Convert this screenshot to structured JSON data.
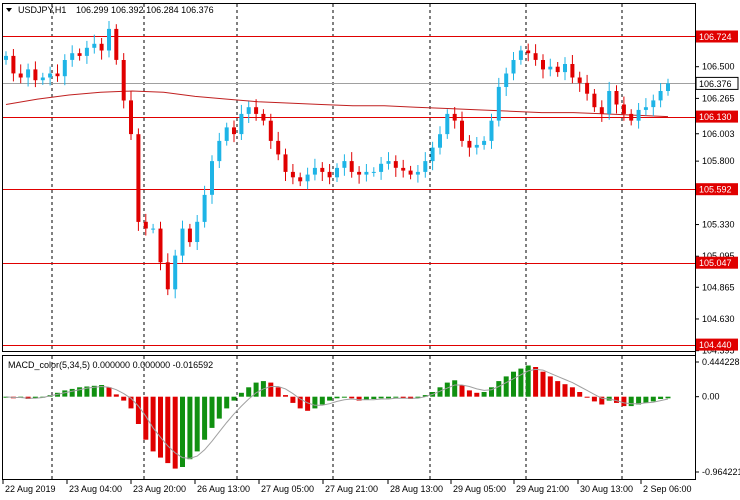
{
  "chart_data": {
    "type": "candlestick",
    "title": "USDJPY,H1",
    "ohlc_label": "106.299 106.392 106.284 106.376",
    "ylim": [
      104.4,
      106.95
    ],
    "yticks": [
      "106.500",
      "106.265",
      "106.003",
      "105.800",
      "105.595",
      "105.330",
      "105.095",
      "104.865",
      "104.630",
      "104.395"
    ],
    "levels": [
      {
        "label": "106.724",
        "value": 106.724
      },
      {
        "label": "106.130",
        "value": 106.13
      },
      {
        "label": "105.592",
        "value": 105.592
      },
      {
        "label": "105.047",
        "value": 105.047
      },
      {
        "label": "104.440",
        "value": 104.44
      }
    ],
    "price_label": {
      "label": "106.376",
      "value": 106.376
    },
    "xticks": [
      "22 Aug 2019",
      "23 Aug 04:00",
      "23 Aug 20:00",
      "26 Aug 13:00",
      "27 Aug 05:00",
      "27 Aug 21:00",
      "28 Aug 13:00",
      "29 Aug 05:00",
      "29 Aug 21:00",
      "30 Aug 13:00",
      "2 Sep 06:00"
    ],
    "close_path": [
      106.58,
      106.45,
      106.42,
      106.48,
      106.4,
      106.42,
      106.45,
      106.43,
      106.55,
      106.6,
      106.58,
      106.64,
      106.67,
      106.62,
      106.78,
      106.55,
      106.25,
      106.0,
      105.35,
      105.3,
      105.3,
      105.05,
      104.85,
      105.1,
      105.3,
      105.2,
      105.35,
      105.55,
      105.8,
      105.95,
      106.05,
      106.0,
      106.15,
      106.2,
      106.15,
      106.1,
      105.95,
      105.85,
      105.72,
      105.68,
      105.65,
      105.7,
      105.75,
      105.72,
      105.68,
      105.75,
      105.8,
      105.72,
      105.7,
      105.72,
      105.72,
      105.78,
      105.8,
      105.75,
      105.73,
      105.7,
      105.72,
      105.8,
      105.9,
      106.0,
      106.15,
      106.1,
      105.95,
      105.9,
      105.92,
      105.95,
      106.1,
      106.35,
      106.45,
      106.55,
      106.62,
      106.6,
      106.55,
      106.48,
      106.5,
      106.46,
      106.52,
      106.42,
      106.38,
      106.3,
      106.2,
      106.15,
      106.32,
      106.22,
      106.15,
      106.1,
      106.18,
      106.2,
      106.25,
      106.32,
      106.376
    ],
    "ma_path": [
      106.22,
      106.26,
      106.29,
      106.31,
      106.32,
      106.31,
      106.28,
      106.26,
      106.24,
      106.23,
      106.22,
      106.21,
      106.21,
      106.2,
      106.19,
      106.18,
      106.17,
      106.16,
      106.16,
      106.15,
      106.14,
      106.13
    ],
    "macd": {
      "label": "MACD_color(5,34,5) 0.000000 0.000000 -0.016592",
      "ylim": [
        -0.9642,
        0.4442
      ],
      "yticks": [
        "0.444228",
        "0.00",
        "-0.964221"
      ],
      "hist": [
        0.0,
        -0.02,
        -0.01,
        -0.03,
        -0.02,
        -0.01,
        0.02,
        0.05,
        0.08,
        0.1,
        0.12,
        0.13,
        0.14,
        0.15,
        0.12,
        0.03,
        -0.05,
        -0.15,
        -0.35,
        -0.55,
        -0.7,
        -0.78,
        -0.85,
        -0.92,
        -0.9,
        -0.8,
        -0.7,
        -0.55,
        -0.4,
        -0.28,
        -0.15,
        -0.05,
        0.05,
        0.12,
        0.18,
        0.2,
        0.18,
        0.12,
        0.02,
        -0.08,
        -0.15,
        -0.18,
        -0.15,
        -0.1,
        -0.05,
        -0.02,
        0.0,
        -0.02,
        -0.05,
        -0.04,
        -0.03,
        -0.02,
        -0.02,
        -0.01,
        -0.02,
        -0.03,
        -0.01,
        0.02,
        0.06,
        0.12,
        0.18,
        0.21,
        0.15,
        0.08,
        0.05,
        0.06,
        0.12,
        0.2,
        0.26,
        0.32,
        0.36,
        0.4,
        0.38,
        0.32,
        0.26,
        0.2,
        0.16,
        0.12,
        0.06,
        0.0,
        -0.06,
        -0.1,
        -0.05,
        -0.08,
        -0.12,
        -0.12,
        -0.1,
        -0.08,
        -0.06,
        -0.03,
        -0.02
      ],
      "signal": [
        0.0,
        -0.01,
        -0.01,
        -0.02,
        -0.02,
        -0.01,
        0.01,
        0.03,
        0.05,
        0.07,
        0.09,
        0.11,
        0.12,
        0.13,
        0.12,
        0.09,
        0.04,
        -0.02,
        -0.12,
        -0.25,
        -0.4,
        -0.52,
        -0.63,
        -0.72,
        -0.78,
        -0.79,
        -0.76,
        -0.68,
        -0.57,
        -0.45,
        -0.33,
        -0.22,
        -0.12,
        -0.03,
        0.05,
        0.1,
        0.13,
        0.13,
        0.1,
        0.04,
        -0.03,
        -0.08,
        -0.11,
        -0.11,
        -0.09,
        -0.06,
        -0.04,
        -0.03,
        -0.04,
        -0.04,
        -0.04,
        -0.03,
        -0.03,
        -0.02,
        -0.02,
        -0.02,
        -0.02,
        0.0,
        0.03,
        0.07,
        0.11,
        0.15,
        0.15,
        0.13,
        0.1,
        0.08,
        0.09,
        0.13,
        0.18,
        0.23,
        0.28,
        0.33,
        0.35,
        0.34,
        0.3,
        0.26,
        0.22,
        0.18,
        0.13,
        0.08,
        0.03,
        -0.02,
        -0.03,
        -0.05,
        -0.08,
        -0.09,
        -0.09,
        -0.08,
        -0.07,
        -0.05,
        -0.03
      ]
    }
  }
}
